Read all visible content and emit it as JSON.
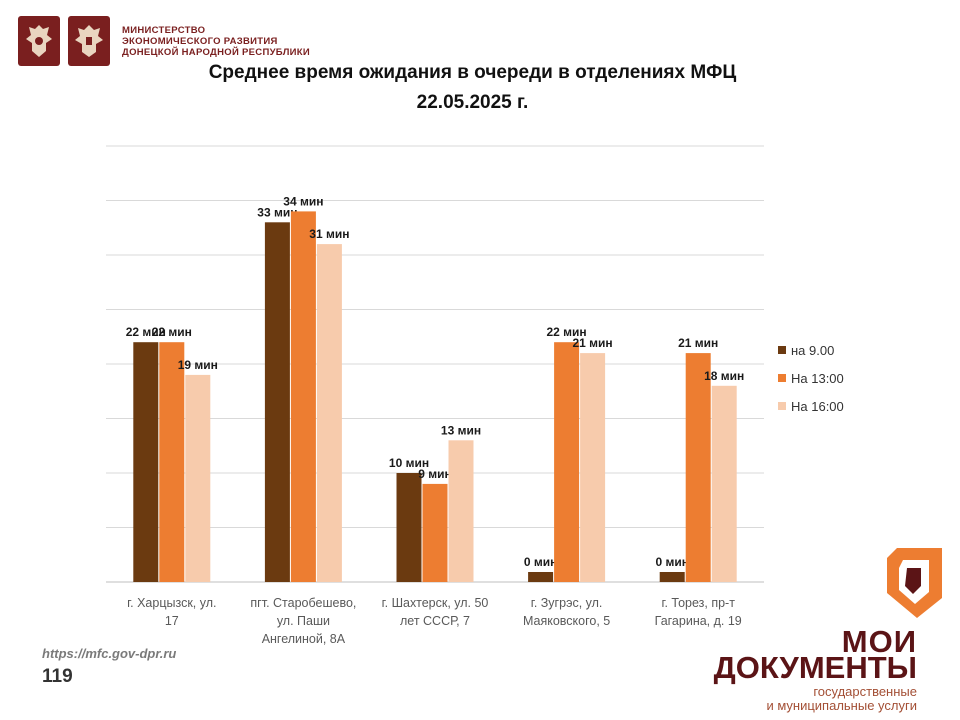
{
  "header": {
    "ministry_line1": "МИНИСТЕРСТВО",
    "ministry_line2": "ЭКОНОМИЧЕСКОГО РАЗВИТИЯ",
    "ministry_line3": "ДОНЕЦКОЙ НАРОДНОЙ РЕСПУБЛИКИ"
  },
  "chart_data": {
    "type": "bar",
    "title_line1": "Среднее время ожидания в очереди в отделениях МФЦ",
    "title_line2": "22.05.2025   г.",
    "categories": [
      [
        "г. Харцызск, ул.",
        "17"
      ],
      [
        "пгт. Старобешево,",
        "ул. Паши",
        "Ангелиной, 8А"
      ],
      [
        "г. Шахтерск, ул. 50",
        "лет СССР, 7"
      ],
      [
        "г. Зугрэс, ул.",
        "Маяковского, 5"
      ],
      [
        "г. Торез, пр-т",
        "Гагарина, д. 19"
      ]
    ],
    "series": [
      {
        "name": "на 9.00",
        "color": "#6b3a10",
        "values": [
          22,
          33,
          10,
          0,
          0
        ]
      },
      {
        "name": "На 13:00",
        "color": "#ed7d31",
        "values": [
          22,
          34,
          9,
          22,
          21
        ]
      },
      {
        "name": "На 16:00",
        "color": "#f7cbac",
        "values": [
          19,
          31,
          13,
          21,
          18
        ]
      }
    ],
    "value_suffix": " мин",
    "ylim": [
      0,
      40
    ],
    "grid": true,
    "legend_position": "right"
  },
  "footer": {
    "url": "https://mfc.gov-dpr.ru",
    "page": "119"
  },
  "brand": {
    "name_line1": "МОИ",
    "name_line2": "ДОКУМЕНТЫ",
    "sub_line1": "государственные",
    "sub_line2": "и муниципальные услуги",
    "primary_color": "#5b1416",
    "accent_color": "#ed7d31"
  }
}
